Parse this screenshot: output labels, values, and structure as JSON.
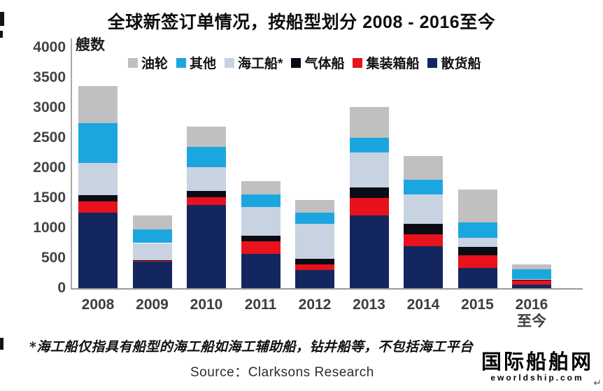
{
  "title": "全球新签订单情况，按船型划分 2008 - 2016至今",
  "unit_label": "艘数",
  "footnote": "*海工船仅指具有船型的海工船如海工辅助船，钻井船等，不包括海工平台",
  "source": "Source：Clarksons Research",
  "watermark": {
    "name": "国际船舶网",
    "domain": "eworldship.com"
  },
  "return_glyph": "↵",
  "chart_data": {
    "type": "bar",
    "stacked": true,
    "title": "全球新签订单情况，按船型划分 2008 - 2016至今",
    "xlabel": "",
    "ylabel": "艘数",
    "ylim": [
      0,
      4000
    ],
    "yticks": [
      0,
      500,
      1000,
      1500,
      2000,
      2500,
      3000,
      3500,
      4000
    ],
    "grid": false,
    "legend_position": "top",
    "legend_order": [
      "油轮",
      "其他",
      "海工船*",
      "气体船",
      "集装箱船",
      "散货船"
    ],
    "categories": [
      "2008",
      "2009",
      "2010",
      "2011",
      "2012",
      "2013",
      "2014",
      "2015",
      "2016至今"
    ],
    "x_label_lines": [
      [
        "2008"
      ],
      [
        "2009"
      ],
      [
        "2010"
      ],
      [
        "2011"
      ],
      [
        "2012"
      ],
      [
        "2013"
      ],
      [
        "2014"
      ],
      [
        "2015"
      ],
      [
        "2016",
        "至今"
      ]
    ],
    "series": [
      {
        "name": "散货船",
        "color": "#14265f",
        "values": [
          1260,
          445,
          1380,
          565,
          300,
          1210,
          700,
          335,
          60
        ]
      },
      {
        "name": "集装箱船",
        "color": "#e8121c",
        "values": [
          180,
          10,
          135,
          215,
          90,
          290,
          195,
          215,
          70
        ]
      },
      {
        "name": "气体船",
        "color": "#0b0b16",
        "values": [
          105,
          10,
          100,
          95,
          95,
          175,
          175,
          135,
          10
        ]
      },
      {
        "name": "海工船*",
        "color": "#c8d3e2",
        "values": [
          535,
          285,
          395,
          475,
          580,
          580,
          485,
          155,
          15
        ]
      },
      {
        "name": "其他",
        "color": "#1ca6e0",
        "values": [
          665,
          225,
          340,
          205,
          190,
          250,
          250,
          250,
          155
        ]
      },
      {
        "name": "油轮",
        "color": "#c0c0c0",
        "values": [
          620,
          235,
          340,
          220,
          210,
          510,
          390,
          545,
          90
        ]
      }
    ],
    "totals": [
      3365,
      1210,
      2690,
      1775,
      1465,
      3015,
      2195,
      1635,
      400
    ]
  }
}
